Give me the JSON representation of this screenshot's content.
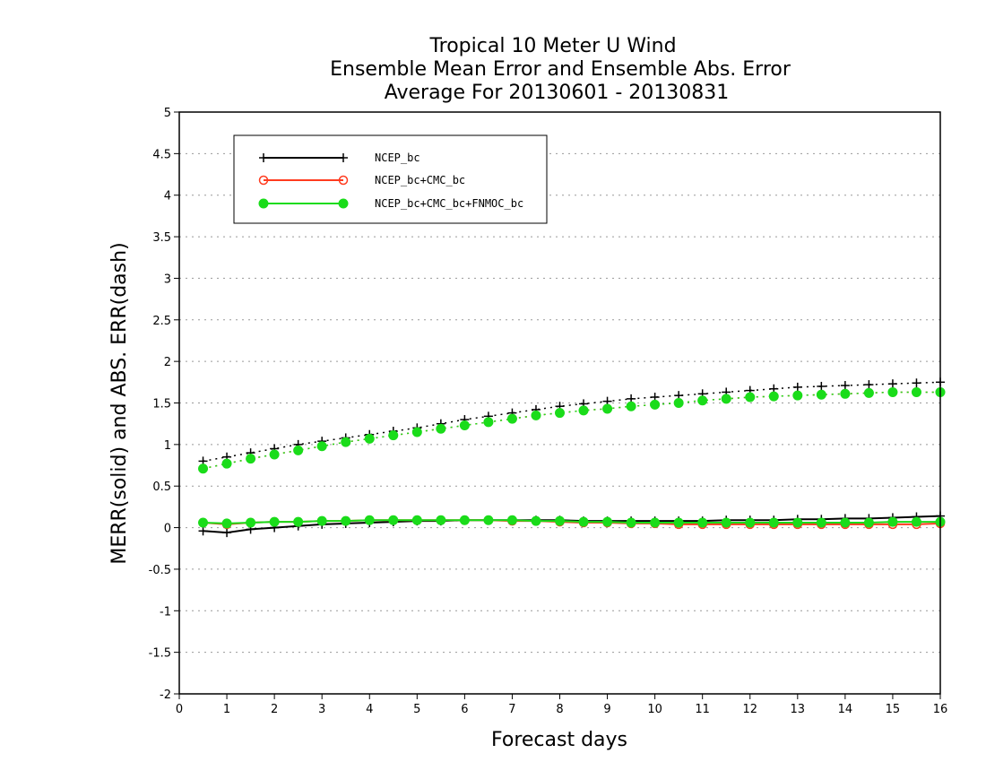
{
  "chart_data": {
    "type": "line",
    "title_lines": [
      "Tropical 10 Meter U Wind",
      "Ensemble Mean Error and Ensemble Abs. Error",
      "Average For 20130601 - 20130831"
    ],
    "xlabel": "Forecast days",
    "ylabel": "MERR(solid) and ABS. ERR(dash)",
    "xlim": [
      0,
      16
    ],
    "ylim": [
      -2,
      5
    ],
    "xticks": [
      "0",
      "1",
      "2",
      "3",
      "4",
      "5",
      "6",
      "7",
      "8",
      "9",
      "10",
      "11",
      "12",
      "13",
      "14",
      "15",
      "16"
    ],
    "yticks": [
      "-2",
      "-1.5",
      "-1",
      "-0.5",
      "0",
      "0.5",
      "1",
      "1.5",
      "2",
      "2.5",
      "3",
      "3.5",
      "4",
      "4.5",
      "5"
    ],
    "grid": "horizontal dotted",
    "legend_position": "top-left",
    "x": [
      0.5,
      1,
      1.5,
      2,
      2.5,
      3,
      3.5,
      4,
      4.5,
      5,
      5.5,
      6,
      6.5,
      7,
      7.5,
      8,
      8.5,
      9,
      9.5,
      10,
      10.5,
      11,
      11.5,
      12,
      12.5,
      13,
      13.5,
      14,
      14.5,
      15,
      15.5,
      16
    ],
    "series": [
      {
        "name": "NCEP_bc",
        "color": "#000000",
        "marker": "plus",
        "merr": [
          -0.04,
          -0.06,
          -0.02,
          0.0,
          0.02,
          0.04,
          0.05,
          0.06,
          0.07,
          0.08,
          0.08,
          0.09,
          0.09,
          0.09,
          0.09,
          0.09,
          0.08,
          0.08,
          0.08,
          0.08,
          0.08,
          0.08,
          0.09,
          0.09,
          0.09,
          0.1,
          0.1,
          0.11,
          0.11,
          0.12,
          0.13,
          0.14
        ],
        "abs_err": [
          0.8,
          0.85,
          0.9,
          0.95,
          1.0,
          1.04,
          1.08,
          1.12,
          1.16,
          1.2,
          1.25,
          1.3,
          1.34,
          1.38,
          1.42,
          1.46,
          1.49,
          1.52,
          1.55,
          1.57,
          1.59,
          1.61,
          1.63,
          1.65,
          1.67,
          1.69,
          1.7,
          1.71,
          1.72,
          1.73,
          1.74,
          1.75
        ]
      },
      {
        "name": "NCEP_bc+CMC_bc",
        "color": "#ff3b1f",
        "marker": "open-circle",
        "merr": [
          0.06,
          0.04,
          0.06,
          0.07,
          0.07,
          0.08,
          0.08,
          0.09,
          0.09,
          0.09,
          0.09,
          0.09,
          0.09,
          0.08,
          0.08,
          0.07,
          0.06,
          0.06,
          0.05,
          0.05,
          0.04,
          0.04,
          0.04,
          0.04,
          0.04,
          0.04,
          0.04,
          0.04,
          0.04,
          0.04,
          0.04,
          0.05
        ],
        "abs_err": [
          0.71,
          0.77,
          0.83,
          0.88,
          0.93,
          0.98,
          1.03,
          1.07,
          1.11,
          1.15,
          1.19,
          1.23,
          1.27,
          1.31,
          1.35,
          1.38,
          1.41,
          1.43,
          1.46,
          1.48,
          1.5,
          1.53,
          1.55,
          1.57,
          1.58,
          1.59,
          1.6,
          1.61,
          1.62,
          1.63,
          1.63,
          1.63
        ]
      },
      {
        "name": "NCEP_bc+CMC_bc+FNMOC_bc",
        "color": "#1adc1a",
        "marker": "filled-circle",
        "merr": [
          0.06,
          0.05,
          0.06,
          0.07,
          0.07,
          0.08,
          0.08,
          0.09,
          0.09,
          0.09,
          0.09,
          0.09,
          0.09,
          0.09,
          0.08,
          0.08,
          0.07,
          0.07,
          0.06,
          0.06,
          0.06,
          0.06,
          0.06,
          0.06,
          0.06,
          0.06,
          0.06,
          0.06,
          0.06,
          0.07,
          0.07,
          0.07
        ],
        "abs_err": [
          0.71,
          0.77,
          0.83,
          0.88,
          0.93,
          0.98,
          1.03,
          1.07,
          1.11,
          1.15,
          1.19,
          1.23,
          1.27,
          1.31,
          1.35,
          1.38,
          1.41,
          1.43,
          1.46,
          1.48,
          1.5,
          1.53,
          1.55,
          1.57,
          1.58,
          1.59,
          1.6,
          1.61,
          1.62,
          1.63,
          1.63,
          1.63
        ]
      }
    ]
  }
}
